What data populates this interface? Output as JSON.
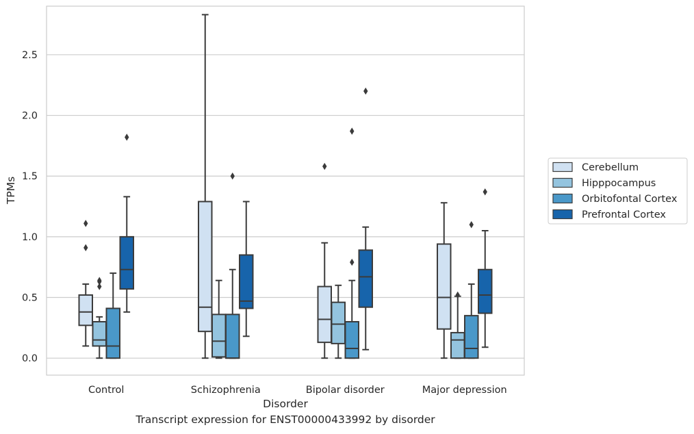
{
  "caption": "Transcript expression for ENST00000433992 by disorder",
  "chart_data": {
    "type": "box",
    "xlabel": "Disorder",
    "ylabel": "TPMs",
    "ylim": [
      -0.14,
      2.9
    ],
    "yticks": [
      0.0,
      0.5,
      1.0,
      1.5,
      2.0,
      2.5
    ],
    "ytick_labels": [
      "0.0",
      "0.5",
      "1.0",
      "1.5",
      "2.0",
      "2.5"
    ],
    "grid": "horizontal",
    "legend_position": "right",
    "categories": [
      "Control",
      "Schizophrenia",
      "Bipolar disorder",
      "Major depression"
    ],
    "series": [
      {
        "name": "Cerebellum",
        "color": "#d0e1f2",
        "boxes": [
          {
            "whisker_low": 0.1,
            "q1": 0.27,
            "median": 0.38,
            "q3": 0.52,
            "whisker_high": 0.61,
            "outliers": [
              0.91,
              1.11
            ]
          },
          {
            "whisker_low": 0.0,
            "q1": 0.22,
            "median": 0.42,
            "q3": 1.29,
            "whisker_high": 2.83,
            "outliers": []
          },
          {
            "whisker_low": 0.0,
            "q1": 0.13,
            "median": 0.32,
            "q3": 0.59,
            "whisker_high": 0.95,
            "outliers": [
              1.58
            ]
          },
          {
            "whisker_low": 0.0,
            "q1": 0.24,
            "median": 0.5,
            "q3": 0.94,
            "whisker_high": 1.28,
            "outliers": []
          }
        ]
      },
      {
        "name": "Hipppocampus",
        "color": "#94c4df",
        "boxes": [
          {
            "whisker_low": 0.0,
            "q1": 0.1,
            "median": 0.15,
            "q3": 0.3,
            "whisker_high": 0.34,
            "outliers": [
              0.59,
              0.63,
              0.64
            ]
          },
          {
            "whisker_low": 0.0,
            "q1": 0.01,
            "median": 0.14,
            "q3": 0.36,
            "whisker_high": 0.64,
            "outliers": []
          },
          {
            "whisker_low": 0.0,
            "q1": 0.12,
            "median": 0.28,
            "q3": 0.46,
            "whisker_high": 0.6,
            "outliers": []
          },
          {
            "whisker_low": 0.0,
            "q1": 0.0,
            "median": 0.15,
            "q3": 0.21,
            "whisker_high": 0.51,
            "outliers": [
              0.52
            ]
          }
        ]
      },
      {
        "name": "Orbitofontal Cortex",
        "color": "#4a98c9",
        "boxes": [
          {
            "whisker_low": 0.0,
            "q1": 0.0,
            "median": 0.1,
            "q3": 0.41,
            "whisker_high": 0.7,
            "outliers": []
          },
          {
            "whisker_low": 0.0,
            "q1": 0.0,
            "median": 0.0,
            "q3": 0.36,
            "whisker_high": 0.73,
            "outliers": [
              1.5
            ]
          },
          {
            "whisker_low": 0.0,
            "q1": 0.0,
            "median": 0.08,
            "q3": 0.3,
            "whisker_high": 0.64,
            "outliers": [
              0.79,
              1.87
            ]
          },
          {
            "whisker_low": 0.0,
            "q1": 0.0,
            "median": 0.08,
            "q3": 0.35,
            "whisker_high": 0.61,
            "outliers": [
              1.1
            ]
          }
        ]
      },
      {
        "name": "Prefrontal Cortex",
        "color": "#1764ab",
        "boxes": [
          {
            "whisker_low": 0.38,
            "q1": 0.57,
            "median": 0.73,
            "q3": 1.0,
            "whisker_high": 1.33,
            "outliers": [
              1.82
            ]
          },
          {
            "whisker_low": 0.18,
            "q1": 0.41,
            "median": 0.47,
            "q3": 0.85,
            "whisker_high": 1.29,
            "outliers": []
          },
          {
            "whisker_low": 0.07,
            "q1": 0.42,
            "median": 0.67,
            "q3": 0.89,
            "whisker_high": 1.08,
            "outliers": [
              2.2
            ]
          },
          {
            "whisker_low": 0.09,
            "q1": 0.37,
            "median": 0.52,
            "q3": 0.73,
            "whisker_high": 1.05,
            "outliers": [
              1.37
            ]
          }
        ]
      }
    ]
  }
}
